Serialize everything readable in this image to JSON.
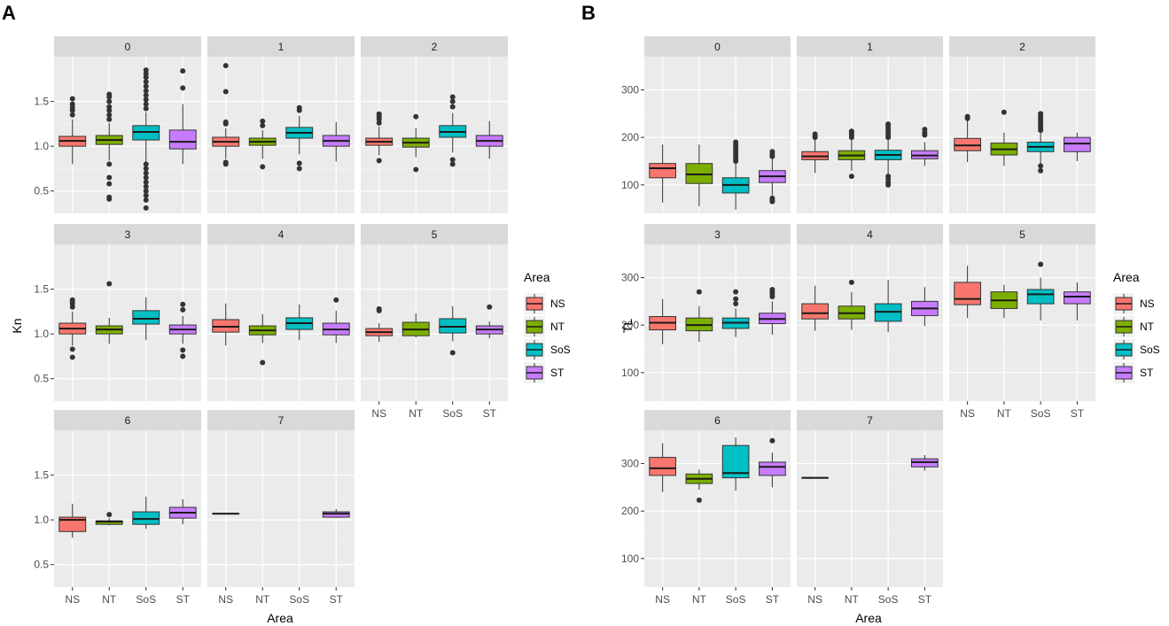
{
  "figure": {
    "legend_title": "Area",
    "groups": [
      "NS",
      "NT",
      "SoS",
      "ST"
    ],
    "colors": {
      "NS": "#F8766D",
      "NT": "#7CAE00",
      "SoS": "#00BFC4",
      "ST": "#C77CFF"
    }
  },
  "chart_data": [
    {
      "type": "boxplot",
      "panel_label": "A",
      "xlabel": "Area",
      "ylabel": "Kn",
      "ylim": [
        0.25,
        2.0
      ],
      "yticks": [
        0.5,
        1.0,
        1.5
      ],
      "ytick_labels": [
        "0.5",
        "1.0",
        "1.5"
      ],
      "categories": [
        "NS",
        "NT",
        "SoS",
        "ST"
      ],
      "legend_position": "right",
      "facets": [
        {
          "label": "0",
          "boxes": [
            {
              "group": "NS",
              "min": 0.8,
              "q1": 1.0,
              "median": 1.06,
              "q3": 1.11,
              "max": 1.3,
              "outliers": [
                1.35,
                1.4,
                1.43,
                1.47,
                1.53
              ]
            },
            {
              "group": "NT",
              "min": 0.84,
              "q1": 1.02,
              "median": 1.07,
              "q3": 1.12,
              "max": 1.26,
              "outliers": [
                0.8,
                0.65,
                0.58,
                0.43,
                0.41,
                1.3,
                1.35,
                1.4,
                1.44,
                1.5,
                1.55,
                1.58
              ]
            },
            {
              "group": "SoS",
              "min": 0.83,
              "q1": 1.07,
              "median": 1.16,
              "q3": 1.23,
              "max": 1.38,
              "outliers": [
                0.31,
                0.4,
                0.45,
                0.5,
                0.55,
                0.6,
                0.65,
                0.7,
                0.75,
                0.8,
                1.42,
                1.47,
                1.52,
                1.57,
                1.62,
                1.67,
                1.72,
                1.77,
                1.81,
                1.85
              ]
            },
            {
              "group": "ST",
              "min": 0.8,
              "q1": 0.97,
              "median": 1.05,
              "q3": 1.18,
              "max": 1.47,
              "outliers": [
                1.65,
                1.84
              ]
            }
          ]
        },
        {
          "label": "1",
          "boxes": [
            {
              "group": "NS",
              "min": 0.86,
              "q1": 1.0,
              "median": 1.05,
              "q3": 1.1,
              "max": 1.2,
              "outliers": [
                0.8,
                0.82,
                1.25,
                1.27,
                1.61,
                1.9
              ]
            },
            {
              "group": "NT",
              "min": 0.86,
              "q1": 1.01,
              "median": 1.05,
              "q3": 1.09,
              "max": 1.18,
              "outliers": [
                0.77,
                1.23,
                1.28
              ]
            },
            {
              "group": "SoS",
              "min": 0.91,
              "q1": 1.09,
              "median": 1.15,
              "q3": 1.21,
              "max": 1.34,
              "outliers": [
                0.75,
                0.81,
                1.4,
                1.43
              ]
            },
            {
              "group": "ST",
              "min": 0.83,
              "q1": 1.0,
              "median": 1.06,
              "q3": 1.12,
              "max": 1.27,
              "outliers": []
            }
          ]
        },
        {
          "label": "2",
          "boxes": [
            {
              "group": "NS",
              "min": 0.9,
              "q1": 1.01,
              "median": 1.05,
              "q3": 1.09,
              "max": 1.22,
              "outliers": [
                0.84,
                1.26,
                1.3,
                1.33,
                1.36
              ]
            },
            {
              "group": "NT",
              "min": 0.88,
              "q1": 0.99,
              "median": 1.04,
              "q3": 1.09,
              "max": 1.2,
              "outliers": [
                0.74,
                1.33
              ]
            },
            {
              "group": "SoS",
              "min": 0.93,
              "q1": 1.1,
              "median": 1.16,
              "q3": 1.23,
              "max": 1.37,
              "outliers": [
                0.8,
                0.85,
                1.44,
                1.5,
                1.55
              ]
            },
            {
              "group": "ST",
              "min": 0.86,
              "q1": 1.0,
              "median": 1.06,
              "q3": 1.12,
              "max": 1.28,
              "outliers": []
            }
          ]
        },
        {
          "label": "3",
          "boxes": [
            {
              "group": "NS",
              "min": 0.87,
              "q1": 1.0,
              "median": 1.06,
              "q3": 1.12,
              "max": 1.25,
              "outliers": [
                0.74,
                0.83,
                1.3,
                1.34,
                1.36,
                1.38
              ]
            },
            {
              "group": "NT",
              "min": 0.89,
              "q1": 1.0,
              "median": 1.05,
              "q3": 1.09,
              "max": 1.18,
              "outliers": [
                1.56
              ]
            },
            {
              "group": "SoS",
              "min": 0.93,
              "q1": 1.11,
              "median": 1.17,
              "q3": 1.26,
              "max": 1.41,
              "outliers": []
            },
            {
              "group": "ST",
              "min": 0.89,
              "q1": 1.0,
              "median": 1.05,
              "q3": 1.1,
              "max": 1.2,
              "outliers": [
                0.75,
                0.82,
                1.27,
                1.33
              ]
            }
          ]
        },
        {
          "label": "4",
          "boxes": [
            {
              "group": "NS",
              "min": 0.87,
              "q1": 1.02,
              "median": 1.08,
              "q3": 1.16,
              "max": 1.34,
              "outliers": []
            },
            {
              "group": "NT",
              "min": 0.9,
              "q1": 0.99,
              "median": 1.04,
              "q3": 1.09,
              "max": 1.22,
              "outliers": [
                0.68
              ]
            },
            {
              "group": "SoS",
              "min": 0.93,
              "q1": 1.05,
              "median": 1.12,
              "q3": 1.18,
              "max": 1.33,
              "outliers": []
            },
            {
              "group": "ST",
              "min": 0.9,
              "q1": 0.99,
              "median": 1.05,
              "q3": 1.12,
              "max": 1.26,
              "outliers": [
                1.38
              ]
            }
          ]
        },
        {
          "label": "5",
          "boxes": [
            {
              "group": "NS",
              "min": 0.91,
              "q1": 0.98,
              "median": 1.02,
              "q3": 1.06,
              "max": 1.12,
              "outliers": [
                1.26,
                1.28
              ]
            },
            {
              "group": "NT",
              "min": 0.96,
              "q1": 0.98,
              "median": 1.05,
              "q3": 1.13,
              "max": 1.23,
              "outliers": []
            },
            {
              "group": "SoS",
              "min": 0.92,
              "q1": 1.01,
              "median": 1.08,
              "q3": 1.17,
              "max": 1.31,
              "outliers": [
                0.79
              ]
            },
            {
              "group": "ST",
              "min": 0.95,
              "q1": 1.0,
              "median": 1.05,
              "q3": 1.09,
              "max": 1.14,
              "outliers": [
                1.3
              ]
            }
          ]
        },
        {
          "label": "6",
          "boxes": [
            {
              "group": "NS",
              "min": 0.8,
              "q1": 0.87,
              "median": 1.0,
              "q3": 1.03,
              "max": 1.18,
              "outliers": []
            },
            {
              "group": "NT",
              "min": 0.94,
              "q1": 0.95,
              "median": 0.98,
              "q3": 0.99,
              "max": 1.02,
              "outliers": [
                1.06
              ]
            },
            {
              "group": "SoS",
              "min": 0.9,
              "q1": 0.95,
              "median": 1.01,
              "q3": 1.09,
              "max": 1.26,
              "outliers": []
            },
            {
              "group": "ST",
              "min": 0.95,
              "q1": 1.02,
              "median": 1.08,
              "q3": 1.14,
              "max": 1.23,
              "outliers": []
            }
          ]
        },
        {
          "label": "7",
          "boxes": [
            {
              "group": "NS",
              "min": 1.07,
              "q1": 1.07,
              "median": 1.07,
              "q3": 1.07,
              "max": 1.07,
              "outliers": []
            },
            {
              "group": "ST",
              "min": 1.02,
              "q1": 1.03,
              "median": 1.07,
              "q3": 1.09,
              "max": 1.12,
              "outliers": []
            }
          ]
        }
      ]
    },
    {
      "type": "boxplot",
      "panel_label": "B",
      "xlabel": "Area",
      "ylabel": "TL",
      "ylim": [
        40,
        370
      ],
      "yticks": [
        100,
        200,
        300
      ],
      "ytick_labels": [
        "100",
        "200",
        "300"
      ],
      "categories": [
        "NS",
        "NT",
        "SoS",
        "ST"
      ],
      "legend_position": "right",
      "facets": [
        {
          "label": "0",
          "boxes": [
            {
              "group": "NS",
              "min": 63,
              "q1": 115,
              "median": 135,
              "q3": 145,
              "max": 185,
              "outliers": []
            },
            {
              "group": "NT",
              "min": 55,
              "q1": 103,
              "median": 122,
              "q3": 145,
              "max": 185,
              "outliers": []
            },
            {
              "group": "SoS",
              "min": 48,
              "q1": 83,
              "median": 100,
              "q3": 115,
              "max": 145,
              "outliers": [
                150,
                155,
                160,
                165,
                170,
                175,
                180,
                185,
                190
              ]
            },
            {
              "group": "ST",
              "min": 78,
              "q1": 105,
              "median": 118,
              "q3": 130,
              "max": 155,
              "outliers": [
                65,
                68,
                72,
                160,
                165,
                170
              ]
            }
          ]
        },
        {
          "label": "1",
          "boxes": [
            {
              "group": "NS",
              "min": 125,
              "q1": 153,
              "median": 160,
              "q3": 170,
              "max": 195,
              "outliers": [
                200,
                203,
                207
              ]
            },
            {
              "group": "NT",
              "min": 130,
              "q1": 153,
              "median": 162,
              "q3": 172,
              "max": 195,
              "outliers": [
                118,
                200,
                205,
                210,
                213
              ]
            },
            {
              "group": "SoS",
              "min": 120,
              "q1": 153,
              "median": 163,
              "q3": 173,
              "max": 195,
              "outliers": [
                100,
                105,
                112,
                118,
                200,
                205,
                210,
                215,
                220,
                225,
                228
              ]
            },
            {
              "group": "ST",
              "min": 140,
              "q1": 155,
              "median": 162,
              "q3": 172,
              "max": 190,
              "outliers": [
                205,
                210,
                217
              ]
            }
          ]
        },
        {
          "label": "2",
          "boxes": [
            {
              "group": "NS",
              "min": 148,
              "q1": 172,
              "median": 183,
              "q3": 198,
              "max": 235,
              "outliers": [
                240,
                244
              ]
            },
            {
              "group": "NT",
              "min": 140,
              "q1": 163,
              "median": 175,
              "q3": 188,
              "max": 210,
              "outliers": [
                253
              ]
            },
            {
              "group": "SoS",
              "min": 143,
              "q1": 170,
              "median": 180,
              "q3": 190,
              "max": 210,
              "outliers": [
                130,
                140,
                215,
                220,
                225,
                230,
                235,
                240,
                245,
                250
              ]
            },
            {
              "group": "ST",
              "min": 150,
              "q1": 170,
              "median": 187,
              "q3": 200,
              "max": 210,
              "outliers": []
            }
          ]
        },
        {
          "label": "3",
          "boxes": [
            {
              "group": "NS",
              "min": 160,
              "q1": 190,
              "median": 205,
              "q3": 218,
              "max": 255,
              "outliers": []
            },
            {
              "group": "NT",
              "min": 165,
              "q1": 188,
              "median": 200,
              "q3": 215,
              "max": 240,
              "outliers": [
                270
              ]
            },
            {
              "group": "SoS",
              "min": 175,
              "q1": 193,
              "median": 205,
              "q3": 215,
              "max": 235,
              "outliers": [
                245,
                255,
                270
              ]
            },
            {
              "group": "ST",
              "min": 180,
              "q1": 203,
              "median": 213,
              "q3": 225,
              "max": 250,
              "outliers": [
                260,
                265,
                270,
                275
              ]
            }
          ]
        },
        {
          "label": "4",
          "boxes": [
            {
              "group": "NS",
              "min": 188,
              "q1": 213,
              "median": 225,
              "q3": 245,
              "max": 283,
              "outliers": []
            },
            {
              "group": "NT",
              "min": 190,
              "q1": 213,
              "median": 225,
              "q3": 240,
              "max": 270,
              "outliers": [
                290
              ]
            },
            {
              "group": "SoS",
              "min": 185,
              "q1": 208,
              "median": 228,
              "q3": 245,
              "max": 295,
              "outliers": []
            },
            {
              "group": "ST",
              "min": 198,
              "q1": 220,
              "median": 235,
              "q3": 250,
              "max": 280,
              "outliers": []
            }
          ]
        },
        {
          "label": "5",
          "boxes": [
            {
              "group": "NS",
              "min": 215,
              "q1": 243,
              "median": 255,
              "q3": 290,
              "max": 325,
              "outliers": []
            },
            {
              "group": "NT",
              "min": 215,
              "q1": 235,
              "median": 252,
              "q3": 270,
              "max": 285,
              "outliers": []
            },
            {
              "group": "SoS",
              "min": 210,
              "q1": 245,
              "median": 265,
              "q3": 275,
              "max": 300,
              "outliers": [
                328
              ]
            },
            {
              "group": "ST",
              "min": 210,
              "q1": 245,
              "median": 260,
              "q3": 270,
              "max": 290,
              "outliers": []
            }
          ]
        },
        {
          "label": "6",
          "boxes": [
            {
              "group": "NS",
              "min": 240,
              "q1": 275,
              "median": 290,
              "q3": 313,
              "max": 343,
              "outliers": []
            },
            {
              "group": "NT",
              "min": 245,
              "q1": 258,
              "median": 268,
              "q3": 278,
              "max": 287,
              "outliers": [
                223
              ]
            },
            {
              "group": "SoS",
              "min": 243,
              "q1": 270,
              "median": 280,
              "q3": 338,
              "max": 355,
              "outliers": []
            },
            {
              "group": "ST",
              "min": 250,
              "q1": 275,
              "median": 293,
              "q3": 303,
              "max": 323,
              "outliers": [
                348
              ]
            }
          ]
        },
        {
          "label": "7",
          "boxes": [
            {
              "group": "NS",
              "min": 270,
              "q1": 270,
              "median": 270,
              "q3": 270,
              "max": 270,
              "outliers": []
            },
            {
              "group": "ST",
              "min": 285,
              "q1": 293,
              "median": 303,
              "q3": 310,
              "max": 318,
              "outliers": []
            }
          ]
        }
      ]
    }
  ]
}
